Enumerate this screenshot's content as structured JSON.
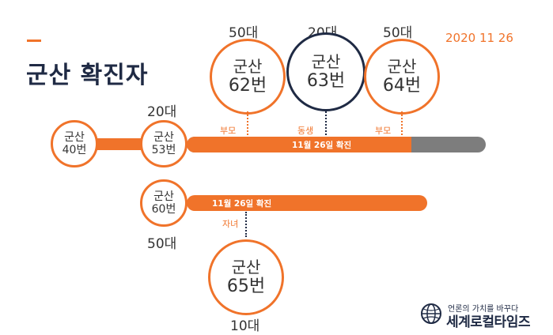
{
  "header": {
    "title": "군산 확진자",
    "date": "2020 11 26"
  },
  "colors": {
    "accent": "#f0732a",
    "dark": "#1f2a44",
    "gray": "#7d7d7d"
  },
  "cases": {
    "c40": {
      "name": "군산",
      "num": "40번"
    },
    "c53": {
      "name": "군산",
      "num": "53번",
      "age": "20대"
    },
    "c60": {
      "name": "군산",
      "num": "60번",
      "age": "50대"
    },
    "c62": {
      "name": "군산",
      "num": "62번",
      "age": "50대",
      "relation": "부모"
    },
    "c63": {
      "name": "군산",
      "num": "63번",
      "age": "20대",
      "relation": "동생"
    },
    "c64": {
      "name": "군산",
      "num": "64번",
      "age": "50대",
      "relation": "부모"
    },
    "c65": {
      "name": "군산",
      "num": "65번",
      "age": "10대",
      "relation": "자녀"
    }
  },
  "timelines": {
    "upper_label": "11월 26일 확진",
    "lower_label": "11월 26일 확진"
  },
  "logo": {
    "slogan": "언론의 가치를 바꾸다",
    "name": "세계로컬타임즈",
    "icon": "globe-logo-icon"
  }
}
